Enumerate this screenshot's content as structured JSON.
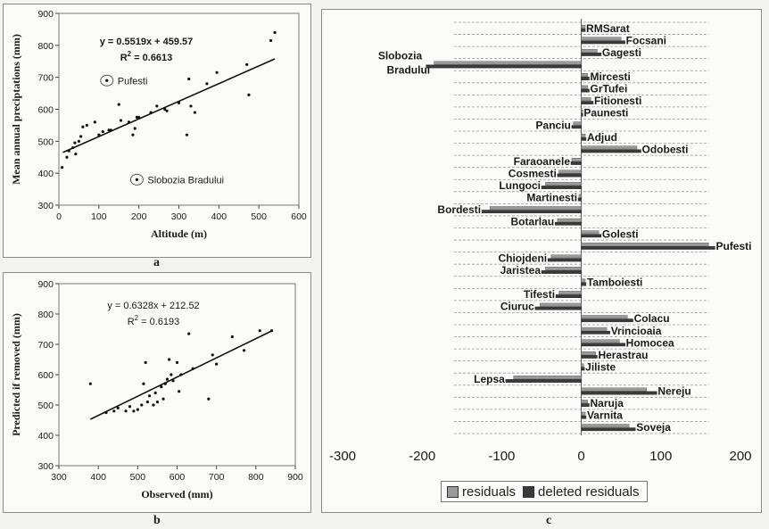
{
  "figure_labels": {
    "a": "a",
    "b": "b",
    "c": "c"
  },
  "colors": {
    "residuals": "#9a9a9a",
    "deleted": "#3a3a3a",
    "line": "#111111",
    "grid": "#9a9a9a"
  },
  "chart_data": [
    {
      "id": "a",
      "type": "scatter",
      "xlabel": "Altitude (m)",
      "ylabel": "Mean annual preciptations (mm)",
      "xlim": [
        0,
        600
      ],
      "ylim": [
        300,
        900
      ],
      "xticks": [
        0,
        100,
        200,
        300,
        400,
        500,
        600
      ],
      "yticks": [
        300,
        400,
        500,
        600,
        700,
        800,
        900
      ],
      "equation": "y = 0.5519x + 459.57",
      "r2_prefix": "R",
      "r2_exp": "2",
      "r2_value": " = 0.6613",
      "trendline": {
        "slope": 0.5519,
        "intercept": 459.57,
        "x_range": [
          10,
          540
        ]
      },
      "annotations": [
        {
          "label": "Pufesti",
          "x": 120,
          "y": 690
        },
        {
          "label": "Slobozia Bradului",
          "x": 195,
          "y": 380
        }
      ],
      "points": [
        [
          8,
          418
        ],
        [
          20,
          450
        ],
        [
          25,
          470
        ],
        [
          35,
          480
        ],
        [
          40,
          495
        ],
        [
          42,
          460
        ],
        [
          50,
          500
        ],
        [
          55,
          515
        ],
        [
          60,
          545
        ],
        [
          70,
          550
        ],
        [
          90,
          560
        ],
        [
          100,
          520
        ],
        [
          110,
          530
        ],
        [
          125,
          535
        ],
        [
          130,
          535
        ],
        [
          150,
          615
        ],
        [
          155,
          565
        ],
        [
          175,
          560
        ],
        [
          185,
          520
        ],
        [
          190,
          540
        ],
        [
          195,
          575
        ],
        [
          200,
          575
        ],
        [
          230,
          590
        ],
        [
          245,
          610
        ],
        [
          265,
          600
        ],
        [
          270,
          595
        ],
        [
          300,
          620
        ],
        [
          320,
          520
        ],
        [
          325,
          695
        ],
        [
          330,
          610
        ],
        [
          340,
          590
        ],
        [
          370,
          680
        ],
        [
          395,
          715
        ],
        [
          470,
          740
        ],
        [
          475,
          645
        ],
        [
          530,
          815
        ],
        [
          540,
          840
        ],
        [
          120,
          690
        ],
        [
          195,
          380
        ]
      ]
    },
    {
      "id": "b",
      "type": "scatter",
      "xlabel": "Observed (mm)",
      "ylabel": "Predicted if removed (mm)",
      "xlim": [
        300,
        900
      ],
      "ylim": [
        300,
        900
      ],
      "xticks": [
        300,
        400,
        500,
        600,
        700,
        800,
        900
      ],
      "yticks": [
        300,
        400,
        500,
        600,
        700,
        800,
        900
      ],
      "equation": "y = 0.6328x + 212.52",
      "r2_prefix": "R",
      "r2_exp": "2",
      "r2_value": " = 0.6193",
      "trendline": {
        "slope": 0.6328,
        "intercept": 212.52,
        "x_range": [
          380,
          840
        ]
      },
      "points": [
        [
          380,
          570
        ],
        [
          420,
          475
        ],
        [
          440,
          480
        ],
        [
          450,
          490
        ],
        [
          470,
          480
        ],
        [
          480,
          495
        ],
        [
          490,
          480
        ],
        [
          500,
          485
        ],
        [
          510,
          500
        ],
        [
          515,
          570
        ],
        [
          520,
          640
        ],
        [
          525,
          510
        ],
        [
          530,
          530
        ],
        [
          540,
          500
        ],
        [
          545,
          540
        ],
        [
          550,
          510
        ],
        [
          560,
          560
        ],
        [
          565,
          520
        ],
        [
          570,
          570
        ],
        [
          575,
          585
        ],
        [
          580,
          650
        ],
        [
          585,
          600
        ],
        [
          590,
          580
        ],
        [
          600,
          640
        ],
        [
          605,
          545
        ],
        [
          610,
          600
        ],
        [
          630,
          735
        ],
        [
          640,
          620
        ],
        [
          680,
          520
        ],
        [
          690,
          665
        ],
        [
          700,
          635
        ],
        [
          740,
          725
        ],
        [
          770,
          680
        ],
        [
          810,
          745
        ],
        [
          840,
          745
        ]
      ]
    },
    {
      "id": "c",
      "type": "bar",
      "orientation": "horizontal",
      "xlim": [
        -300,
        200
      ],
      "xticks": [
        -300,
        -200,
        -100,
        0,
        100,
        200
      ],
      "series_names": [
        "residuals",
        "deleted residuals"
      ],
      "categories": [
        {
          "name": "RMSarat",
          "residual": 5,
          "deleted": 5,
          "side": "right"
        },
        {
          "name": "Focsani",
          "residual": 50,
          "deleted": 55,
          "side": "right"
        },
        {
          "name": "Gagesti",
          "residual": 20,
          "deleted": 25,
          "side": "right"
        },
        {
          "name": "Slobozia Bradului",
          "residual": -185,
          "deleted": -195,
          "side": "left"
        },
        {
          "name": "Mircesti",
          "residual": 8,
          "deleted": 10,
          "side": "right"
        },
        {
          "name": "GrTufei",
          "residual": 8,
          "deleted": 10,
          "side": "right"
        },
        {
          "name": "Fitionesti",
          "residual": 12,
          "deleted": 15,
          "side": "right"
        },
        {
          "name": "Paunesti",
          "residual": 2,
          "deleted": 2,
          "side": "right"
        },
        {
          "name": "Panciu",
          "residual": -10,
          "deleted": -12,
          "side": "left"
        },
        {
          "name": "Adjud",
          "residual": 5,
          "deleted": 6,
          "side": "right"
        },
        {
          "name": "Odobesti",
          "residual": 70,
          "deleted": 75,
          "side": "right"
        },
        {
          "name": "Faraoanele",
          "residual": -12,
          "deleted": -13,
          "side": "left"
        },
        {
          "name": "Cosmesti",
          "residual": -28,
          "deleted": -30,
          "side": "left"
        },
        {
          "name": "Lungoci",
          "residual": -45,
          "deleted": -50,
          "side": "left"
        },
        {
          "name": "Martinesti",
          "residual": -3,
          "deleted": -4,
          "side": "left"
        },
        {
          "name": "Bordesti",
          "residual": -115,
          "deleted": -125,
          "side": "left"
        },
        {
          "name": "Botarlau",
          "residual": -30,
          "deleted": -33,
          "side": "left"
        },
        {
          "name": "Golesti",
          "residual": 22,
          "deleted": 25,
          "side": "right"
        },
        {
          "name": "Pufesti",
          "residual": 160,
          "deleted": 168,
          "side": "right"
        },
        {
          "name": "Chiojdeni",
          "residual": -38,
          "deleted": -42,
          "side": "left"
        },
        {
          "name": "Jaristea",
          "residual": -45,
          "deleted": -50,
          "side": "left"
        },
        {
          "name": "Tamboiesti",
          "residual": 5,
          "deleted": 6,
          "side": "right"
        },
        {
          "name": "Tifesti",
          "residual": -28,
          "deleted": -32,
          "side": "left"
        },
        {
          "name": "Ciuruc",
          "residual": -52,
          "deleted": -58,
          "side": "left"
        },
        {
          "name": "Colacu",
          "residual": 58,
          "deleted": 65,
          "side": "right"
        },
        {
          "name": "Vrincioaia",
          "residual": 32,
          "deleted": 36,
          "side": "right"
        },
        {
          "name": "Homocea",
          "residual": 48,
          "deleted": 55,
          "side": "right"
        },
        {
          "name": "Herastrau",
          "residual": 18,
          "deleted": 20,
          "side": "right"
        },
        {
          "name": "Jiliste",
          "residual": 3,
          "deleted": 4,
          "side": "right"
        },
        {
          "name": "Lepsa",
          "residual": -85,
          "deleted": -95,
          "side": "left"
        },
        {
          "name": "Nereju",
          "residual": 82,
          "deleted": 95,
          "side": "right"
        },
        {
          "name": "Naruja",
          "residual": 8,
          "deleted": 10,
          "side": "right"
        },
        {
          "name": "Varnita",
          "residual": 5,
          "deleted": 6,
          "side": "right"
        },
        {
          "name": "Soveja",
          "residual": 60,
          "deleted": 68,
          "side": "right"
        }
      ]
    }
  ]
}
